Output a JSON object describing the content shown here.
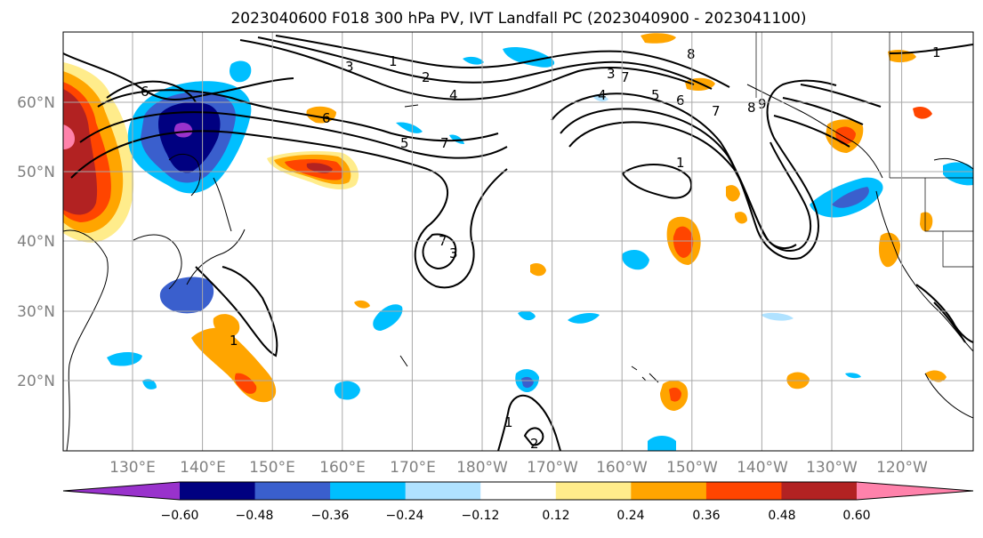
{
  "title": "2023040600 F018 300 hPa PV, IVT Landfall PC (2023040900 - 2023041100)",
  "map": {
    "lat_labels": [
      "60°N",
      "50°N",
      "40°N",
      "30°N",
      "20°N"
    ],
    "lon_labels": [
      "130°E",
      "140°E",
      "150°E",
      "160°E",
      "170°E",
      "180°W",
      "170°W",
      "160°W",
      "150°W",
      "140°W",
      "130°W",
      "120°W"
    ],
    "contour_labels": [
      "6",
      "3",
      "1",
      "2",
      "4",
      "7",
      "6",
      "5",
      "7",
      "3",
      "4",
      "5",
      "6",
      "7",
      "8",
      "8",
      "9",
      "1",
      "1",
      "7",
      "3",
      "1",
      "1",
      "2"
    ]
  },
  "colorbar": {
    "ticks": [
      "−0.60",
      "−0.48",
      "−0.36",
      "−0.24",
      "−0.12",
      "0.12",
      "0.24",
      "0.36",
      "0.48",
      "0.60"
    ],
    "colors": [
      "#9932cc",
      "#000080",
      "#3a5fcd",
      "#00bfff",
      "#b0e2ff",
      "#ffffff",
      "#ffec8b",
      "#ffa500",
      "#ff4500",
      "#b22222",
      "#ff82ab"
    ]
  }
}
